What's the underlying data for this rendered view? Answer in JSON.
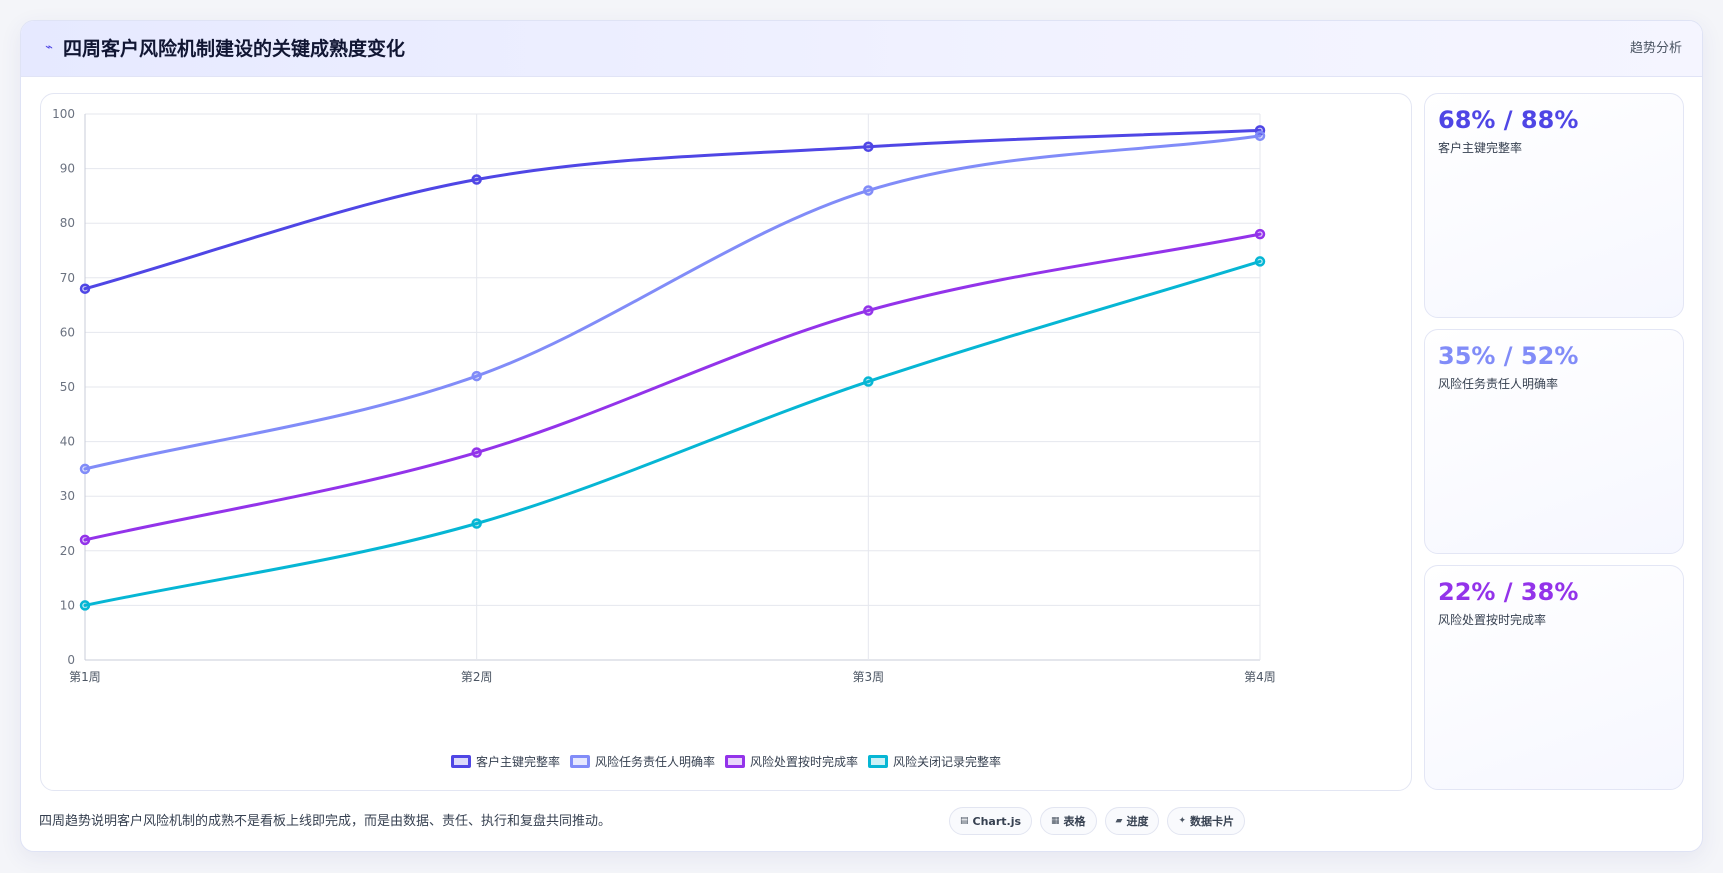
{
  "header": {
    "icon": "activity-icon",
    "title": "四周客户风险机制建设的关键成熟度变化",
    "action_label": "趋势分析"
  },
  "chart_data": {
    "type": "line",
    "categories": [
      "第1周",
      "第2周",
      "第3周",
      "第4周"
    ],
    "ylim": [
      0,
      100
    ],
    "y_ticks": [
      0,
      10,
      20,
      30,
      40,
      50,
      60,
      70,
      80,
      90,
      100
    ],
    "grid": true,
    "legend_position": "bottom",
    "series": [
      {
        "name": "客户主键完整率",
        "color": "#4f46e5",
        "values": [
          68,
          88,
          94,
          97
        ]
      },
      {
        "name": "风险任务责任人明确率",
        "color": "#818cf8",
        "values": [
          35,
          52,
          86,
          96
        ]
      },
      {
        "name": "风险处置按时完成率",
        "color": "#9333ea",
        "values": [
          22,
          38,
          64,
          78
        ]
      },
      {
        "name": "风险关闭记录完整率",
        "color": "#06b6d4",
        "values": [
          10,
          25,
          51,
          73
        ]
      }
    ]
  },
  "stats": [
    {
      "value": "68% / 88%",
      "label": "客户主键完整率",
      "color": "#4f46e5"
    },
    {
      "value": "35% / 52%",
      "label": "风险任务责任人明确率",
      "color": "#818cf8"
    },
    {
      "value": "22% / 38%",
      "label": "风险处置按时完成率",
      "color": "#9333ea"
    }
  ],
  "footer": {
    "note": "四周趋势说明客户风险机制的成熟不是看板上线即完成，而是由数据、责任、执行和复盘共同推动。",
    "pills": [
      {
        "icon": "chart-icon",
        "glyph": "▤",
        "label": "Chart.js"
      },
      {
        "icon": "table-icon",
        "glyph": "▦",
        "label": "表格"
      },
      {
        "icon": "progress-icon",
        "glyph": "▰",
        "label": "进度"
      },
      {
        "icon": "sparkle-icon",
        "glyph": "✦",
        "label": "数据卡片"
      }
    ]
  }
}
